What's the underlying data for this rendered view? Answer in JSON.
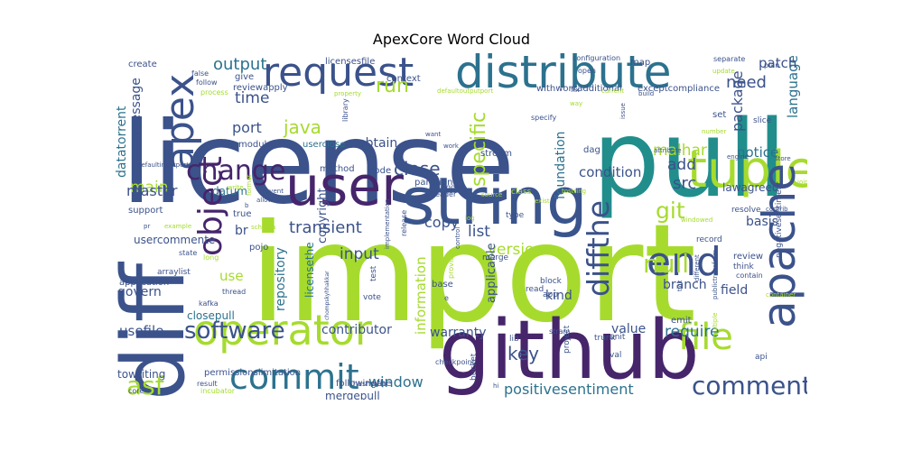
{
  "chart_data": {
    "type": "wordcloud",
    "title": "ApexCore Word Cloud",
    "words": [
      {
        "text": "import",
        "weight": 1.0,
        "color": "#a6db2e"
      },
      {
        "text": "license",
        "weight": 0.97,
        "color": "#3b528b"
      },
      {
        "text": "pull",
        "weight": 0.82,
        "color": "#218e8c"
      },
      {
        "text": "diff",
        "weight": 0.66,
        "color": "#3b528b"
      },
      {
        "text": "github",
        "weight": 0.62,
        "color": "#46256b"
      },
      {
        "text": "string",
        "weight": 0.5,
        "color": "#3a548c"
      },
      {
        "text": "distribute",
        "weight": 0.42,
        "color": "#2c728e"
      },
      {
        "text": "request",
        "weight": 0.38,
        "color": "#3b528b"
      },
      {
        "text": "user",
        "weight": 0.38,
        "color": "#46256b"
      },
      {
        "text": "tuple",
        "weight": 0.37,
        "color": "#a6db2e"
      },
      {
        "text": "apache",
        "weight": 0.35,
        "color": "#3b528b"
      },
      {
        "text": "operator",
        "weight": 0.34,
        "color": "#a6db2e"
      },
      {
        "text": "apex",
        "weight": 0.33,
        "color": "#3b528b"
      },
      {
        "text": "end",
        "weight": 0.3,
        "color": "#3b528b"
      },
      {
        "text": "object",
        "weight": 0.3,
        "color": "#46256b"
      },
      {
        "text": "commit",
        "weight": 0.3,
        "color": "#2c728e"
      },
      {
        "text": "file",
        "weight": 0.3,
        "color": "#a6db2e"
      },
      {
        "text": "diffthe",
        "weight": 0.26,
        "color": "#3b528b"
      },
      {
        "text": "change",
        "weight": 0.25,
        "color": "#46256b"
      },
      {
        "text": "comment",
        "weight": 0.24,
        "color": "#3b528b"
      },
      {
        "text": "software",
        "weight": 0.24,
        "color": "#3b528b"
      },
      {
        "text": "asf",
        "weight": 0.22,
        "color": "#a6db2e"
      },
      {
        "text": "null",
        "weight": 0.21,
        "color": "#a6db2e"
      },
      {
        "text": "git",
        "weight": 0.2,
        "color": "#a6db2e"
      },
      {
        "text": "specific",
        "weight": 0.16,
        "color": "#a6db2e"
      },
      {
        "text": "run",
        "weight": 0.16,
        "color": "#a6db2e"
      },
      {
        "text": "java",
        "weight": 0.16,
        "color": "#a6db2e"
      },
      {
        "text": "key",
        "weight": 0.16,
        "color": "#3b528b"
      },
      {
        "text": "close",
        "weight": 0.15,
        "color": "#3b528b"
      },
      {
        "text": "transient",
        "weight": 0.15,
        "color": "#3b528b"
      },
      {
        "text": "output",
        "weight": 0.14,
        "color": "#2c728e"
      },
      {
        "text": "need",
        "weight": 0.14,
        "color": "#3b528b"
      },
      {
        "text": "time",
        "weight": 0.14,
        "color": "#3b528b"
      },
      {
        "text": "main",
        "weight": 0.14,
        "color": "#a6db2e"
      },
      {
        "text": "malhar",
        "weight": 0.14,
        "color": "#a6db2e"
      },
      {
        "text": "input",
        "weight": 0.14,
        "color": "#3b528b"
      },
      {
        "text": "version",
        "weight": 0.14,
        "color": "#a6db2e"
      },
      {
        "text": "copy",
        "weight": 0.14,
        "color": "#3b528b"
      },
      {
        "text": "list",
        "weight": 0.14,
        "color": "#3b528b"
      },
      {
        "text": "require",
        "weight": 0.14,
        "color": "#2c728e"
      },
      {
        "text": "src",
        "weight": 0.14,
        "color": "#3b528b"
      },
      {
        "text": "add",
        "weight": 0.14,
        "color": "#3b528b"
      },
      {
        "text": "positivesentiment",
        "weight": 0.13,
        "color": "#2c728e"
      },
      {
        "text": "window",
        "weight": 0.12,
        "color": "#2c728e"
      },
      {
        "text": "master",
        "weight": 0.12,
        "color": "#3b528b"
      },
      {
        "text": "port",
        "weight": 0.12,
        "color": "#3b528b"
      },
      {
        "text": "condition",
        "weight": 0.12,
        "color": "#3b528b"
      },
      {
        "text": "use",
        "weight": 0.12,
        "color": "#a6db2e"
      },
      {
        "text": "usefile",
        "weight": 0.12,
        "color": "#3b528b"
      },
      {
        "text": "package",
        "weight": 0.12,
        "color": "#3b528b"
      },
      {
        "text": "language",
        "weight": 0.12,
        "color": "#2c728e"
      },
      {
        "text": "patch",
        "weight": 0.12,
        "color": "#3b528b"
      },
      {
        "text": "information",
        "weight": 0.12,
        "color": "#a6db2e"
      },
      {
        "text": "foundation",
        "weight": 0.12,
        "color": "#2c728e"
      },
      {
        "text": "message",
        "weight": 0.12,
        "color": "#3b528b"
      },
      {
        "text": "datatorrent",
        "weight": 0.12,
        "color": "#2c728e"
      },
      {
        "text": "repository",
        "weight": 0.12,
        "color": "#2c728e"
      },
      {
        "text": "branch",
        "weight": 0.11,
        "color": "#3b528b"
      },
      {
        "text": "notice",
        "weight": 0.11,
        "color": "#2c728e"
      },
      {
        "text": "value",
        "weight": 0.11,
        "color": "#3b528b"
      },
      {
        "text": "warranty",
        "weight": 0.11,
        "color": "#3b528b"
      },
      {
        "text": "contributor",
        "weight": 0.11,
        "color": "#3b528b"
      },
      {
        "text": "field",
        "weight": 0.11,
        "color": "#3b528b"
      },
      {
        "text": "kind",
        "weight": 0.11,
        "color": "#3b528b"
      },
      {
        "text": "basis",
        "weight": 0.1,
        "color": "#3b528b"
      },
      {
        "text": "obtain",
        "weight": 0.1,
        "color": "#3b528b"
      },
      {
        "text": "applicable",
        "weight": 0.1,
        "color": "#3b528b"
      },
      {
        "text": "govern",
        "weight": 0.1,
        "color": "#3b528b"
      },
      {
        "text": "copyright",
        "weight": 0.09,
        "color": "#3b528b"
      },
      {
        "text": "datum",
        "weight": 0.09,
        "color": "#2c728e"
      },
      {
        "text": "br",
        "weight": 0.09,
        "color": "#3b528b"
      },
      {
        "text": "usercommente",
        "weight": 0.08,
        "color": "#3b528b"
      },
      {
        "text": "lawagreed",
        "weight": 0.08,
        "color": "#3b528b"
      },
      {
        "text": "licensethe",
        "weight": 0.08,
        "color": "#2c728e"
      },
      {
        "text": "closepull",
        "weight": 0.08,
        "color": "#2c728e"
      },
      {
        "text": "towriting",
        "weight": 0.08,
        "color": "#3b528b"
      },
      {
        "text": "mergepull",
        "weight": 0.08,
        "color": "#3b528b"
      },
      {
        "text": "reviewapply",
        "weight": 0.08,
        "color": "#3b528b"
      },
      {
        "text": "withworkadditional",
        "weight": 0.08,
        "color": "#3b528b"
      },
      {
        "text": "exceptcompliance",
        "weight": 0.08,
        "color": "#3b528b"
      },
      {
        "text": "permissionslimitation",
        "weight": 0.07,
        "color": "#3b528b"
      },
      {
        "text": "followingthe",
        "weight": 0.07,
        "color": "#3b528b"
      },
      {
        "text": "create",
        "weight": 0.06,
        "color": "#3b528b"
      },
      {
        "text": "give",
        "weight": 0.06,
        "color": "#3b528b"
      },
      {
        "text": "licensesfile",
        "weight": 0.06,
        "color": "#3b528b"
      },
      {
        "text": "context",
        "weight": 0.06,
        "color": "#3b528b"
      },
      {
        "text": "map",
        "weight": 0.06,
        "color": "#3b528b"
      },
      {
        "text": "module",
        "weight": 0.06,
        "color": "#3b528b"
      },
      {
        "text": "userclose",
        "weight": 0.06,
        "color": "#2c728e"
      },
      {
        "text": "method",
        "weight": 0.06,
        "color": "#3b528b"
      },
      {
        "text": "code",
        "weight": 0.06,
        "color": "#3b528b"
      },
      {
        "text": "partition",
        "weight": 0.06,
        "color": "#3b528b"
      },
      {
        "text": "stream",
        "weight": 0.06,
        "color": "#3b528b"
      },
      {
        "text": "dag",
        "weight": 0.06,
        "color": "#3b528b"
      },
      {
        "text": "support",
        "weight": 0.06,
        "color": "#3b528b"
      },
      {
        "text": "true",
        "weight": 0.06,
        "color": "#3b528b"
      },
      {
        "text": "pojo",
        "weight": 0.06,
        "color": "#3b528b"
      },
      {
        "text": "arraylist",
        "weight": 0.05,
        "color": "#3b528b"
      },
      {
        "text": "application",
        "weight": 0.06,
        "color": "#3b528b"
      },
      {
        "text": "set",
        "weight": 0.06,
        "color": "#3b528b"
      },
      {
        "text": "slice",
        "weight": 0.05,
        "color": "#3b528b"
      },
      {
        "text": "review",
        "weight": 0.05,
        "color": "#3b528b"
      },
      {
        "text": "think",
        "weight": 0.05,
        "color": "#3b528b"
      },
      {
        "text": "emit",
        "weight": 0.05,
        "color": "#3b528b"
      },
      {
        "text": "negativesentiment",
        "weight": 0.05,
        "color": "#3b528b"
      },
      {
        "text": "trunk",
        "weight": 0.05,
        "color": "#3b528b"
      },
      {
        "text": "bucket",
        "weight": 0.05,
        "color": "#3b528b"
      },
      {
        "text": "base",
        "weight": 0.05,
        "color": "#3b528b"
      },
      {
        "text": "test",
        "weight": 0.05,
        "color": "#3b528b"
      },
      {
        "text": "vote",
        "weight": 0.05,
        "color": "#3b528b"
      },
      {
        "text": "api",
        "weight": 0.05,
        "color": "#3b528b"
      },
      {
        "text": "record",
        "weight": 0.05,
        "color": "#3b528b"
      },
      {
        "text": "resolve",
        "weight": 0.05,
        "color": "#3b528b"
      },
      {
        "text": "contain",
        "weight": 0.05,
        "color": "#3b528b"
      },
      {
        "text": "merge",
        "weight": 0.05,
        "color": "#3b528b"
      },
      {
        "text": "block",
        "weight": 0.05,
        "color": "#3b528b"
      },
      {
        "text": "read",
        "weight": 0.05,
        "color": "#3b528b"
      },
      {
        "text": "app",
        "weight": 0.05,
        "color": "#3b528b"
      },
      {
        "text": "unit",
        "weight": 0.05,
        "color": "#3b528b"
      },
      {
        "text": "project",
        "weight": 0.05,
        "color": "#3b528b"
      },
      {
        "text": "lib",
        "weight": 0.05,
        "color": "#3b528b"
      },
      {
        "text": "val",
        "weight": 0.05,
        "color": "#3b528b"
      },
      {
        "text": "state",
        "weight": 0.05,
        "color": "#3b528b"
      },
      {
        "text": "long",
        "weight": 0.05,
        "color": "#a6db2e"
      },
      {
        "text": "thread",
        "weight": 0.05,
        "color": "#3b528b"
      },
      {
        "text": "kafka",
        "weight": 0.05,
        "color": "#3b528b"
      },
      {
        "text": "core",
        "weight": 0.05,
        "color": "#3b528b"
      },
      {
        "text": "result",
        "weight": 0.05,
        "color": "#3b528b"
      },
      {
        "text": "incubator",
        "weight": 0.05,
        "color": "#a6db2e"
      },
      {
        "text": "checkpoint",
        "weight": 0.05,
        "color": "#3b528b"
      },
      {
        "text": "hashmap",
        "weight": 0.05,
        "color": "#3b528b"
      },
      {
        "text": "stram",
        "weight": 0.05,
        "color": "#3b528b"
      },
      {
        "text": "example",
        "weight": 0.05,
        "color": "#a6db2e"
      },
      {
        "text": "schema",
        "weight": 0.05,
        "color": "#a6db2e"
      },
      {
        "text": "pr",
        "weight": 0.05,
        "color": "#3b528b"
      },
      {
        "text": "false",
        "weight": 0.05,
        "color": "#3b528b"
      },
      {
        "text": "follow",
        "weight": 0.05,
        "color": "#3b528b"
      },
      {
        "text": "process",
        "weight": 0.05,
        "color": "#a6db2e"
      },
      {
        "text": "library",
        "weight": 0.05,
        "color": "#3b528b"
      },
      {
        "text": "defaultinputport",
        "weight": 0.05,
        "color": "#3b528b"
      },
      {
        "text": "defaultoutputport",
        "weight": 0.05,
        "color": "#a6db2e"
      },
      {
        "text": "allow",
        "weight": 0.05,
        "color": "#3b528b"
      },
      {
        "text": "event",
        "weight": 0.05,
        "color": "#3b528b"
      },
      {
        "text": "write",
        "weight": 0.05,
        "color": "#a6db2e"
      },
      {
        "text": "release",
        "weight": 0.05,
        "color": "#3b528b"
      },
      {
        "text": "reader",
        "weight": 0.05,
        "color": "#3b528b"
      },
      {
        "text": "good",
        "weight": 0.05,
        "color": "#3b528b"
      },
      {
        "text": "class",
        "weight": 0.05,
        "color": "#a6db2e"
      },
      {
        "text": "type",
        "weight": 0.05,
        "color": "#3b528b"
      },
      {
        "text": "specify",
        "weight": 0.05,
        "color": "#3b528b"
      },
      {
        "text": "work",
        "weight": 0.05,
        "color": "#3b528b"
      },
      {
        "text": "configuration",
        "weight": 0.05,
        "color": "#3b528b"
      },
      {
        "text": "separate",
        "weight": 0.05,
        "color": "#3b528b"
      },
      {
        "text": "plan",
        "weight": 0.05,
        "color": "#3b528b"
      },
      {
        "text": "attribute",
        "weight": 0.05,
        "color": "#3b528b"
      },
      {
        "text": "number",
        "weight": 0.05,
        "color": "#a6db2e"
      },
      {
        "text": "engine",
        "weight": 0.05,
        "color": "#3b528b"
      },
      {
        "text": "store",
        "weight": 0.05,
        "color": "#3b528b"
      },
      {
        "text": "join",
        "weight": 0.05,
        "color": "#a6db2e"
      },
      {
        "text": "contrib",
        "weight": 0.05,
        "color": "#3b528b"
      },
      {
        "text": "build",
        "weight": 0.05,
        "color": "#3b528b"
      },
      {
        "text": "open",
        "weight": 0.05,
        "color": "#3b528b"
      },
      {
        "text": "fix",
        "weight": 0.05,
        "color": "#3b528b"
      },
      {
        "text": "windowed",
        "weight": 0.05,
        "color": "#a6db2e"
      },
      {
        "text": "issue",
        "weight": 0.05,
        "color": "#3b528b"
      },
      {
        "text": "different",
        "weight": 0.05,
        "color": "#3b528b"
      },
      {
        "text": "container",
        "weight": 0.05,
        "color": "#a6db2e"
      },
      {
        "text": "update",
        "weight": 0.05,
        "color": "#a6db2e"
      },
      {
        "text": "tick",
        "weight": 0.05,
        "color": "#3b528b"
      },
      {
        "text": "publictransform",
        "weight": 0.05,
        "color": "#3b528b"
      },
      {
        "text": "current",
        "weight": 0.05,
        "color": "#a6db2e"
      },
      {
        "text": "want",
        "weight": 0.05,
        "color": "#3b528b"
      },
      {
        "text": "exist",
        "weight": 0.05,
        "color": "#a6db2e"
      },
      {
        "text": "log",
        "weight": 0.05,
        "color": "#a6db2e"
      },
      {
        "text": "source",
        "weight": 0.05,
        "color": "#a6db2e"
      },
      {
        "text": "implementation",
        "weight": 0.05,
        "color": "#3b528b"
      },
      {
        "text": "e",
        "weight": 0.05,
        "color": "#3b528b"
      },
      {
        "text": "control",
        "weight": 0.05,
        "color": "#3b528b"
      },
      {
        "text": "hi",
        "weight": 0.05,
        "color": "#3b528b"
      },
      {
        "text": "provide",
        "weight": 0.05,
        "color": "#a6db2e"
      },
      {
        "text": "chompskyhhakkar",
        "weight": 0.05,
        "color": "#3b528b"
      },
      {
        "text": "b",
        "weight": 0.05,
        "color": "#3b528b"
      },
      {
        "text": "multiple",
        "weight": 0.05,
        "color": "#a6db2e"
      },
      {
        "text": "tostring",
        "weight": 0.05,
        "color": "#a6db2e"
      },
      {
        "text": "property",
        "weight": 0.05,
        "color": "#a6db2e"
      },
      {
        "text": "way",
        "weight": 0.05,
        "color": "#a6db2e"
      },
      {
        "text": "format",
        "weight": 0.05,
        "color": "#a6db2e"
      }
    ]
  }
}
